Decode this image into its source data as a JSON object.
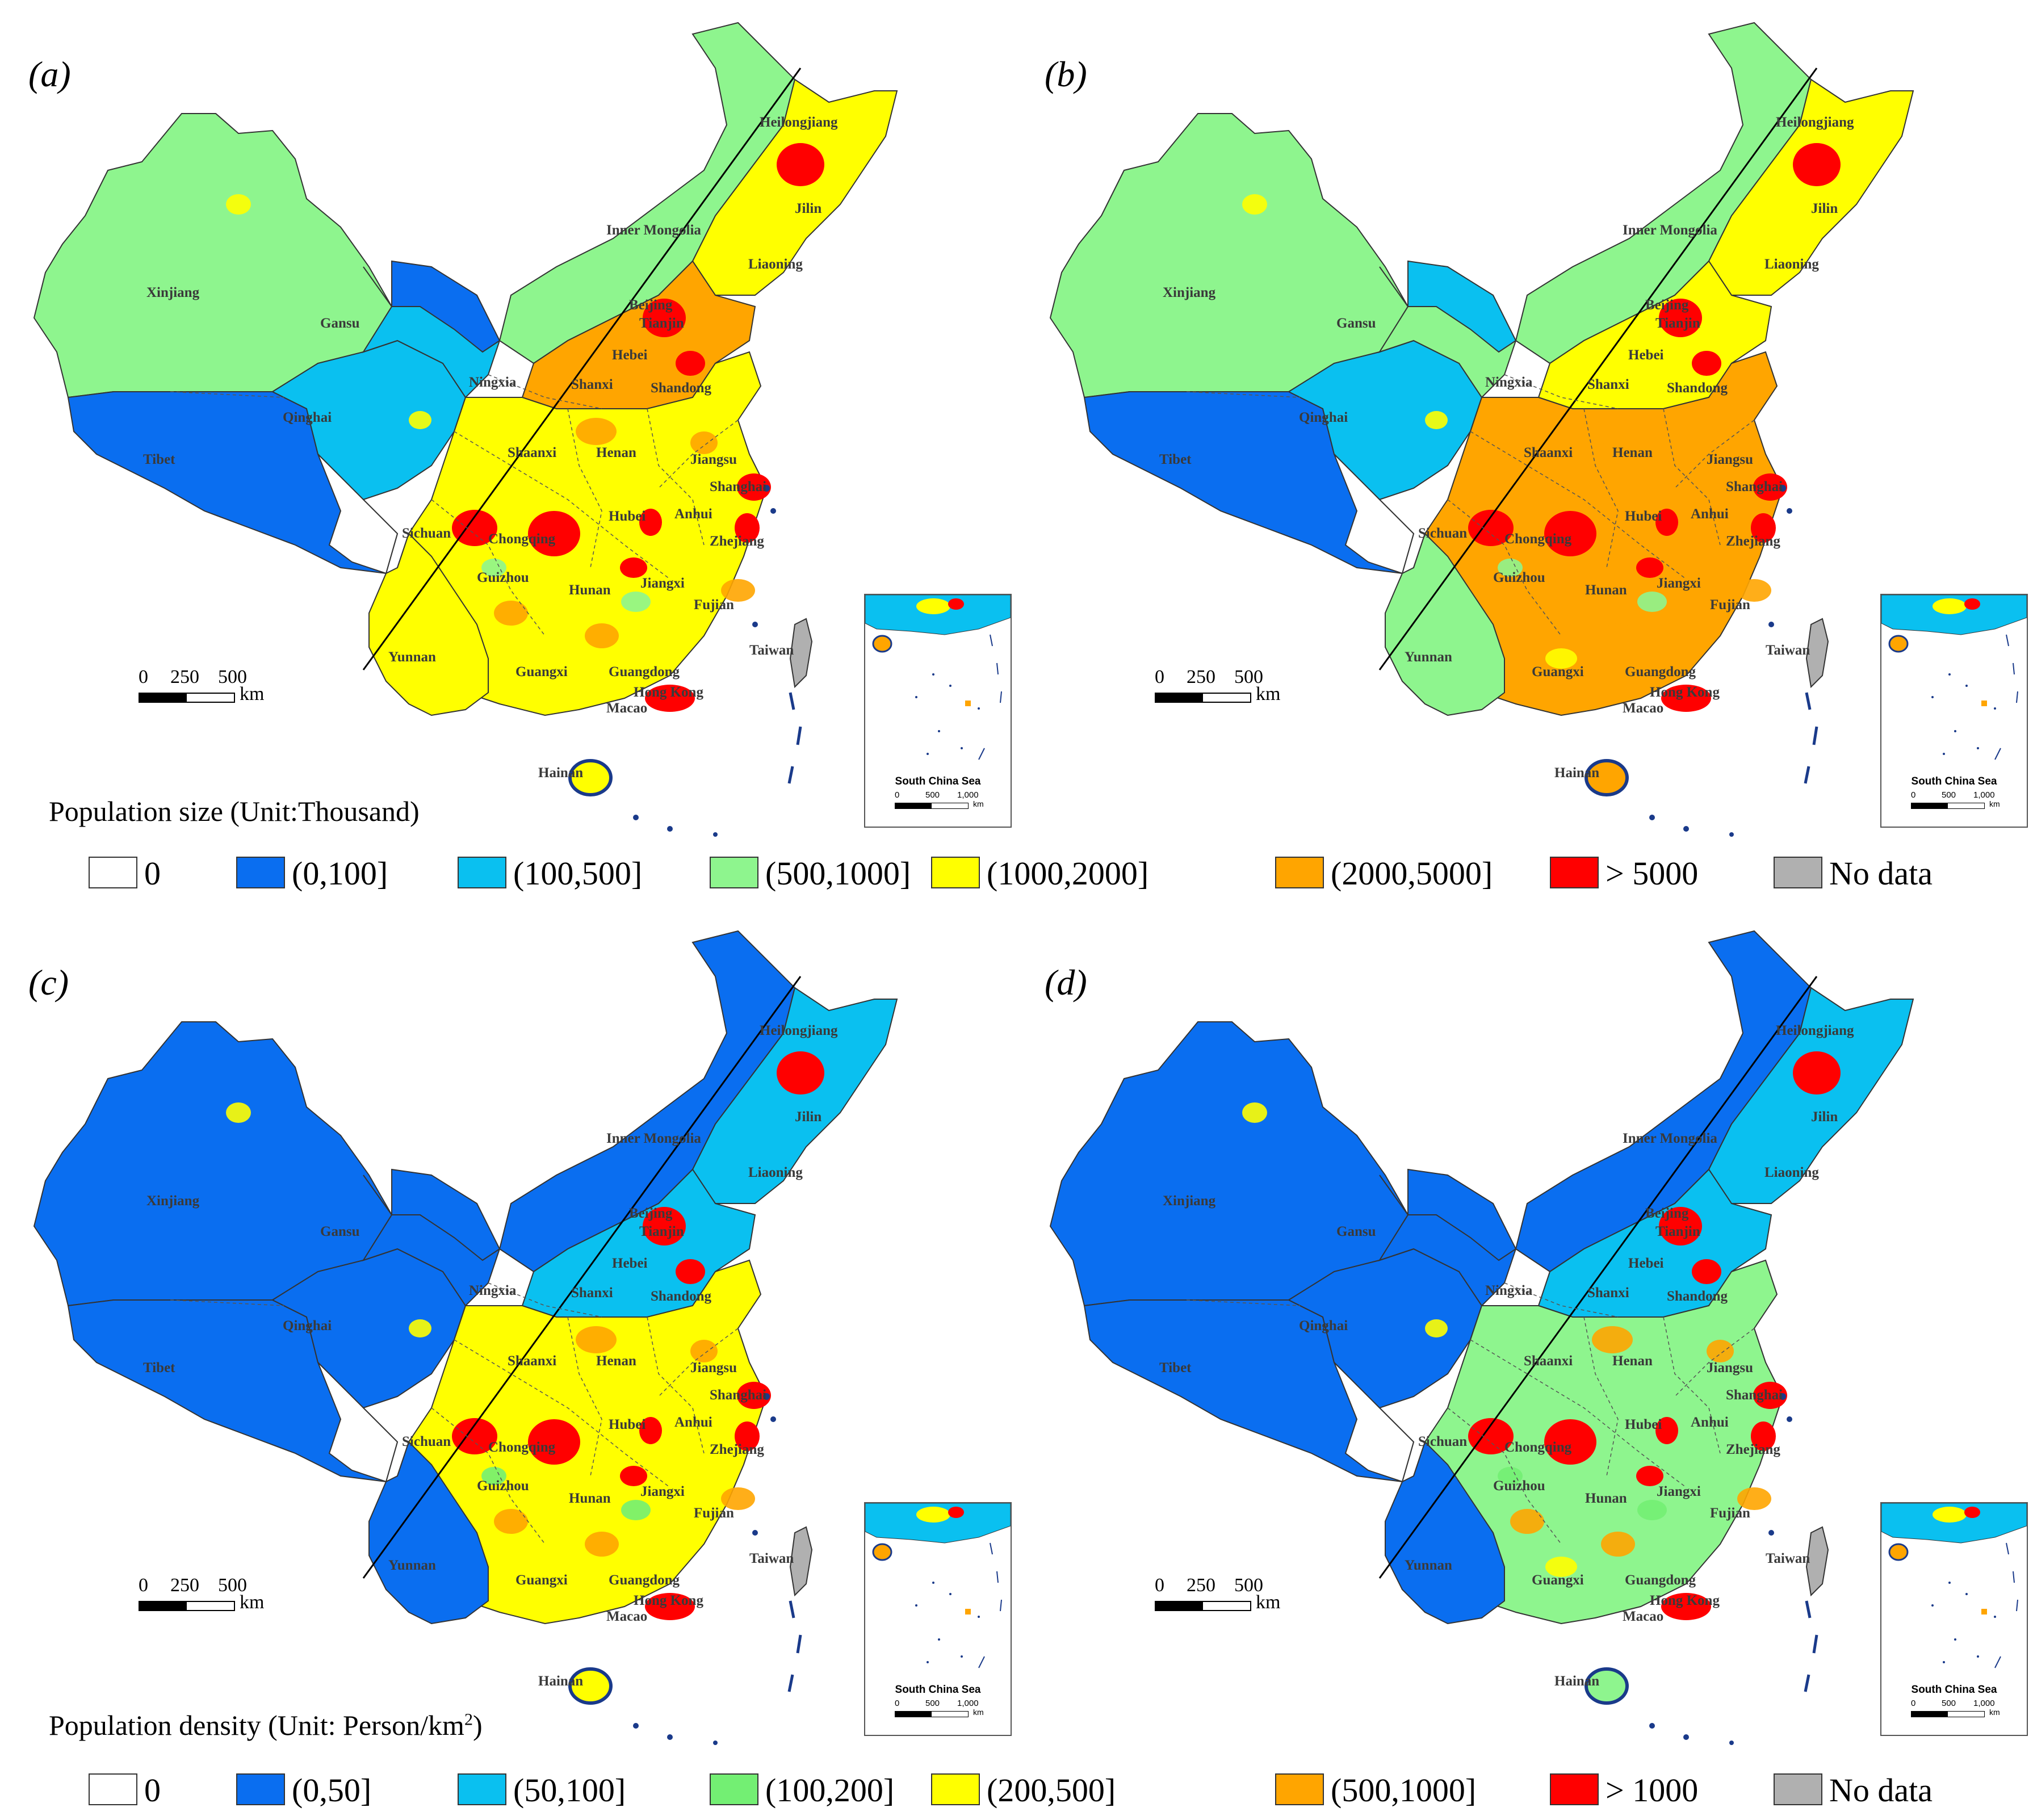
{
  "panels": [
    {
      "letter": "(a)",
      "palette": "size",
      "fills": {
        "xinjiang": "#8ef58e",
        "tibet": "#0a6ef0",
        "qinghai": "#0ac0f0",
        "gansu": "#0ac0f0",
        "inner": "#8ef58e",
        "ne": "#ffff00",
        "east": "#ffff00",
        "north": "#ffa500",
        "yunnan": "#ffff00"
      },
      "nw_hot": "#0a6ef0"
    },
    {
      "letter": "(b)",
      "palette": "size",
      "fills": {
        "xinjiang": "#8ef58e",
        "tibet": "#0a6ef0",
        "qinghai": "#0ac0f0",
        "gansu": "#8ef58e",
        "inner": "#8ef58e",
        "ne": "#ffff00",
        "east": "#ffa500",
        "north": "#ffff00",
        "yunnan": "#8ef58e"
      },
      "nw_hot": "#0ac0f0"
    },
    {
      "letter": "(c)",
      "palette": "density",
      "fills": {
        "xinjiang": "#0a6ef0",
        "tibet": "#0a6ef0",
        "qinghai": "#0a6ef0",
        "gansu": "#0a6ef0",
        "inner": "#0a6ef0",
        "ne": "#0ac0f0",
        "east": "#ffff00",
        "north": "#0ac0f0",
        "yunnan": "#0a6ef0"
      },
      "nw_hot": "#0a6ef0"
    },
    {
      "letter": "(d)",
      "palette": "density",
      "fills": {
        "xinjiang": "#0a6ef0",
        "tibet": "#0a6ef0",
        "qinghai": "#0a6ef0",
        "gansu": "#0a6ef0",
        "inner": "#0a6ef0",
        "ne": "#0ac0f0",
        "east": "#8ef58e",
        "north": "#0ac0f0",
        "yunnan": "#0a6ef0"
      },
      "nw_hot": "#0a6ef0"
    }
  ],
  "provinces": [
    "Heilongjiang",
    "Jilin",
    "Liaoning",
    "Inner Mongolia",
    "Xinjiang",
    "Gansu",
    "Beijing",
    "Tianjin",
    "Hebei",
    "Ningxia",
    "Shanxi",
    "Shandong",
    "Qinghai",
    "Tibet",
    "Shaanxi",
    "Henan",
    "Jiangsu",
    "Shanghai",
    "Sichuan",
    "Chongqing",
    "Hubei",
    "Anhui",
    "Zhejiang",
    "Guizhou",
    "Hunan",
    "Jiangxi",
    "Fujian",
    "Yunnan",
    "Guangxi",
    "Guangdong",
    "Taiwan",
    "Hong Kong",
    "Macao",
    "Hainan"
  ],
  "scale_bar": {
    "ticks": [
      "0",
      "250",
      "500"
    ],
    "unit": "km"
  },
  "inset": {
    "title": "South China Sea",
    "ticks": [
      "0",
      "500",
      "1,000"
    ],
    "unit": "km"
  },
  "legend_size": {
    "title": "Population size (Unit:Thousand)",
    "items": [
      {
        "label": "0",
        "color": "#ffffff"
      },
      {
        "label": "(0,100]",
        "color": "#0a6ef0"
      },
      {
        "label": "(100,500]",
        "color": "#0ac0f0"
      },
      {
        "label": "(500,1000]",
        "color": "#8ef58e"
      },
      {
        "label": "(1000,2000]",
        "color": "#ffff00"
      },
      {
        "label": "(2000,5000]",
        "color": "#ffa500"
      },
      {
        "label": "> 5000",
        "color": "#ff0000"
      },
      {
        "label": "No data",
        "color": "#b0b0b0"
      }
    ]
  },
  "legend_density": {
    "title_main": "Population density (Unit: Person/km",
    "title_sup": "2",
    "title_end": ")",
    "items": [
      {
        "label": "0",
        "color": "#ffffff"
      },
      {
        "label": "(0,50]",
        "color": "#0a6ef0"
      },
      {
        "label": "(50,100]",
        "color": "#0ac0f0"
      },
      {
        "label": "(100,200]",
        "color": "#73ef73"
      },
      {
        "label": "(200,500]",
        "color": "#ffff00"
      },
      {
        "label": "(500,1000]",
        "color": "#ffa500"
      },
      {
        "label": "> 1000",
        "color": "#ff0000"
      },
      {
        "label": "No data",
        "color": "#b0b0b0"
      }
    ]
  }
}
